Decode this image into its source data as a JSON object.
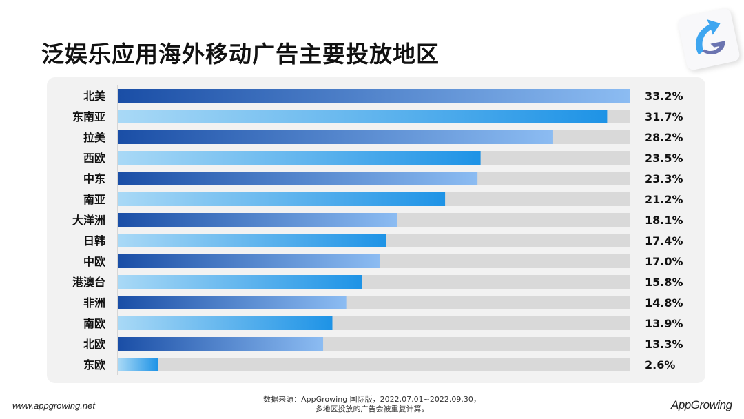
{
  "title": "泛娱乐应用海外移动广告主要投放地区",
  "footer": {
    "url": "www.appgrowing.net",
    "source_line1": "数据来源：AppGrowing 国际版，2022.07.01~2022.09.30，",
    "source_line2": "多地区投放的广告会被重复计算。",
    "brand": "AppGrowing"
  },
  "colors": {
    "dark_start": "#1a4ea6",
    "dark_end": "#8cbcf2",
    "light_start": "#a9d9f6",
    "light_end": "#1e93e6",
    "track": "#d9d9d9"
  },
  "chart_data": {
    "type": "bar",
    "orientation": "horizontal",
    "categories": [
      "北美",
      "东南亚",
      "拉美",
      "西欧",
      "中东",
      "南亚",
      "大洋洲",
      "日韩",
      "中欧",
      "港澳台",
      "非洲",
      "南欧",
      "北欧",
      "东欧"
    ],
    "values": [
      33.2,
      31.7,
      28.2,
      23.5,
      23.3,
      21.2,
      18.1,
      17.4,
      17.0,
      15.8,
      14.8,
      13.9,
      13.3,
      2.6
    ],
    "labels": [
      "33.2%",
      "31.7%",
      "28.2%",
      "23.5%",
      "23.3%",
      "21.2%",
      "18.1%",
      "17.4%",
      "17.0%",
      "15.8%",
      "14.8%",
      "13.9%",
      "13.3%",
      "2.6%"
    ],
    "xlim": [
      0,
      33.2
    ],
    "grid": false
  }
}
